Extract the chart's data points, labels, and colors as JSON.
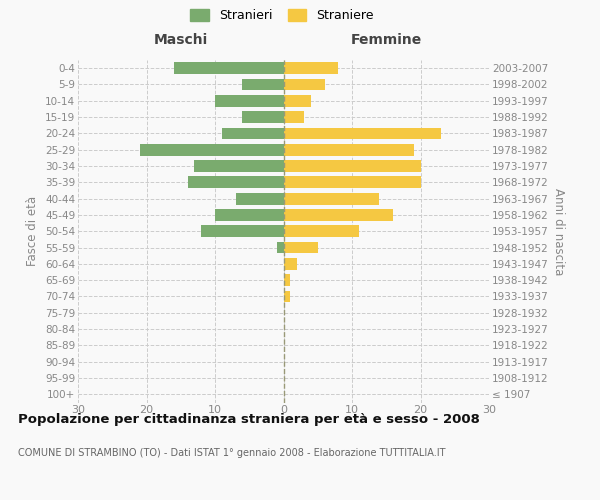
{
  "age_groups": [
    "100+",
    "95-99",
    "90-94",
    "85-89",
    "80-84",
    "75-79",
    "70-74",
    "65-69",
    "60-64",
    "55-59",
    "50-54",
    "45-49",
    "40-44",
    "35-39",
    "30-34",
    "25-29",
    "20-24",
    "15-19",
    "10-14",
    "5-9",
    "0-4"
  ],
  "birth_years": [
    "≤ 1907",
    "1908-1912",
    "1913-1917",
    "1918-1922",
    "1923-1927",
    "1928-1932",
    "1933-1937",
    "1938-1942",
    "1943-1947",
    "1948-1952",
    "1953-1957",
    "1958-1962",
    "1963-1967",
    "1968-1972",
    "1973-1977",
    "1978-1982",
    "1983-1987",
    "1988-1992",
    "1993-1997",
    "1998-2002",
    "2003-2007"
  ],
  "males": [
    0,
    0,
    0,
    0,
    0,
    0,
    0,
    0,
    0,
    1,
    12,
    10,
    7,
    14,
    13,
    21,
    9,
    6,
    10,
    6,
    16
  ],
  "females": [
    0,
    0,
    0,
    0,
    0,
    0,
    1,
    1,
    2,
    5,
    11,
    16,
    14,
    20,
    20,
    19,
    23,
    3,
    4,
    6,
    8
  ],
  "male_color": "#7aab6e",
  "female_color": "#f5c842",
  "center_line_color": "#999977",
  "title": "Popolazione per cittadinanza straniera per età e sesso - 2008",
  "subtitle": "COMUNE DI STRAMBINO (TO) - Dati ISTAT 1° gennaio 2008 - Elaborazione TUTTITALIA.IT",
  "ylabel_left": "Fasce di età",
  "ylabel_right": "Anni di nascita",
  "label_maschi": "Maschi",
  "label_femmine": "Femmine",
  "legend_male": "Stranieri",
  "legend_female": "Straniere",
  "xlim": 30,
  "bg_color": "#f9f9f9",
  "grid_color": "#cccccc",
  "tick_color": "#888888",
  "title_color": "#111111",
  "subtitle_color": "#666666"
}
